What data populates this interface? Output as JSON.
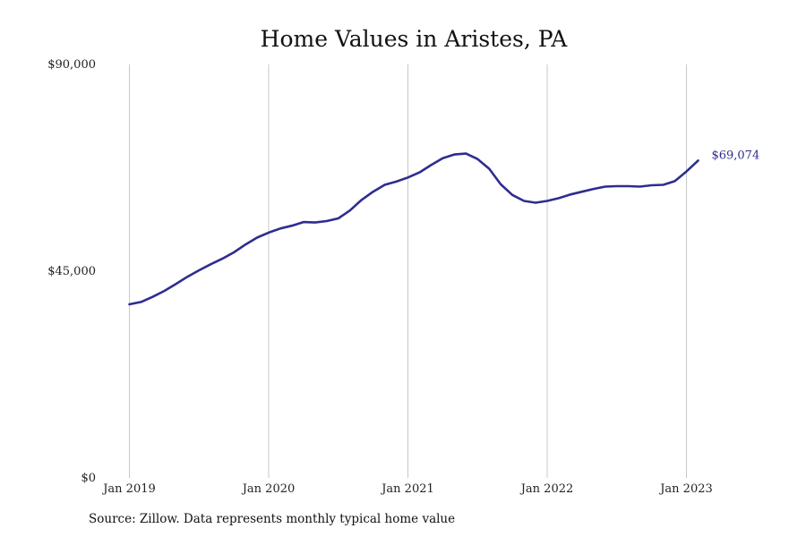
{
  "chart_data": {
    "type": "line",
    "title": "Home Values in Aristes, PA",
    "xlabel": "",
    "ylabel": "",
    "ylim": [
      0,
      90000
    ],
    "y_ticks": [
      {
        "value": 0,
        "label": "$0"
      },
      {
        "value": 45000,
        "label": "$45,000"
      },
      {
        "value": 90000,
        "label": "$90,000"
      }
    ],
    "x_ticks": [
      {
        "value": 0,
        "label": "Jan 2019"
      },
      {
        "value": 12,
        "label": "Jan 2020"
      },
      {
        "value": 24,
        "label": "Jan 2021"
      },
      {
        "value": 36,
        "label": "Jan 2022"
      },
      {
        "value": 48,
        "label": "Jan 2023"
      }
    ],
    "x_months": [
      "Jan 2019",
      "Feb 2019",
      "Mar 2019",
      "Apr 2019",
      "May 2019",
      "Jun 2019",
      "Jul 2019",
      "Aug 2019",
      "Sep 2019",
      "Oct 2019",
      "Nov 2019",
      "Dec 2019",
      "Jan 2020",
      "Feb 2020",
      "Mar 2020",
      "Apr 2020",
      "May 2020",
      "Jun 2020",
      "Jul 2020",
      "Aug 2020",
      "Sep 2020",
      "Oct 2020",
      "Nov 2020",
      "Dec 2020",
      "Jan 2021",
      "Feb 2021",
      "Mar 2021",
      "Apr 2021",
      "May 2021",
      "Jun 2021",
      "Jul 2021",
      "Aug 2021",
      "Sep 2021",
      "Oct 2021",
      "Nov 2021",
      "Dec 2021",
      "Jan 2022",
      "Feb 2022",
      "Mar 2022",
      "Apr 2022",
      "May 2022",
      "Jun 2022",
      "Jul 2022",
      "Aug 2022",
      "Sep 2022",
      "Oct 2022",
      "Nov 2022",
      "Dec 2022",
      "Jan 2023",
      "Feb 2023"
    ],
    "grid": {
      "vertical": true,
      "horizontal": false
    },
    "series": [
      {
        "color": "#2e2d8f",
        "values": [
          37800,
          38300,
          39400,
          40700,
          42200,
          43800,
          45200,
          46500,
          47700,
          49100,
          50800,
          52300,
          53400,
          54300,
          54900,
          55700,
          55600,
          55900,
          56500,
          58200,
          60500,
          62300,
          63800,
          64500,
          65400,
          66500,
          68100,
          69600,
          70400,
          70600,
          69400,
          67300,
          63900,
          61600,
          60300,
          59900,
          60300,
          60900,
          61700,
          62300,
          62900,
          63400,
          63500,
          63500,
          63400,
          63700,
          63800,
          64600,
          66700,
          69074
        ]
      }
    ],
    "end_label": "$69,074"
  },
  "source_note": "Source: Zillow. Data represents monthly typical home value"
}
